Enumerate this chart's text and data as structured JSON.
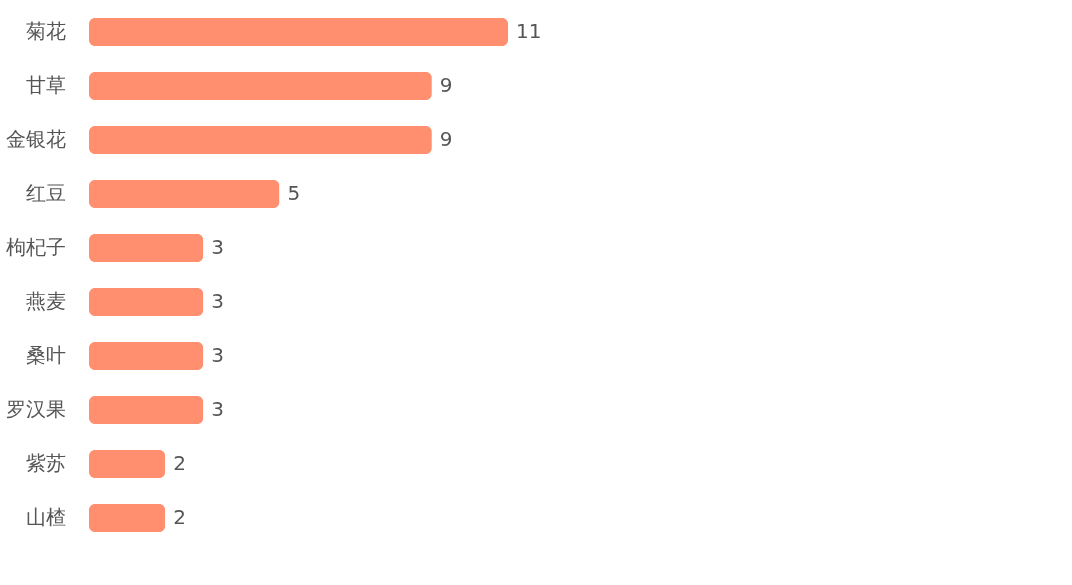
{
  "chart_data": {
    "type": "bar",
    "orientation": "horizontal",
    "categories": [
      "菊花",
      "甘草",
      "金银花",
      "红豆",
      "枸杞子",
      "燕麦",
      "桑叶",
      "罗汉果",
      "紫苏",
      "山楂"
    ],
    "values": [
      11,
      9,
      9,
      5,
      3,
      3,
      3,
      3,
      2,
      2
    ],
    "color": "#ff8f6f",
    "data_labels": true
  }
}
